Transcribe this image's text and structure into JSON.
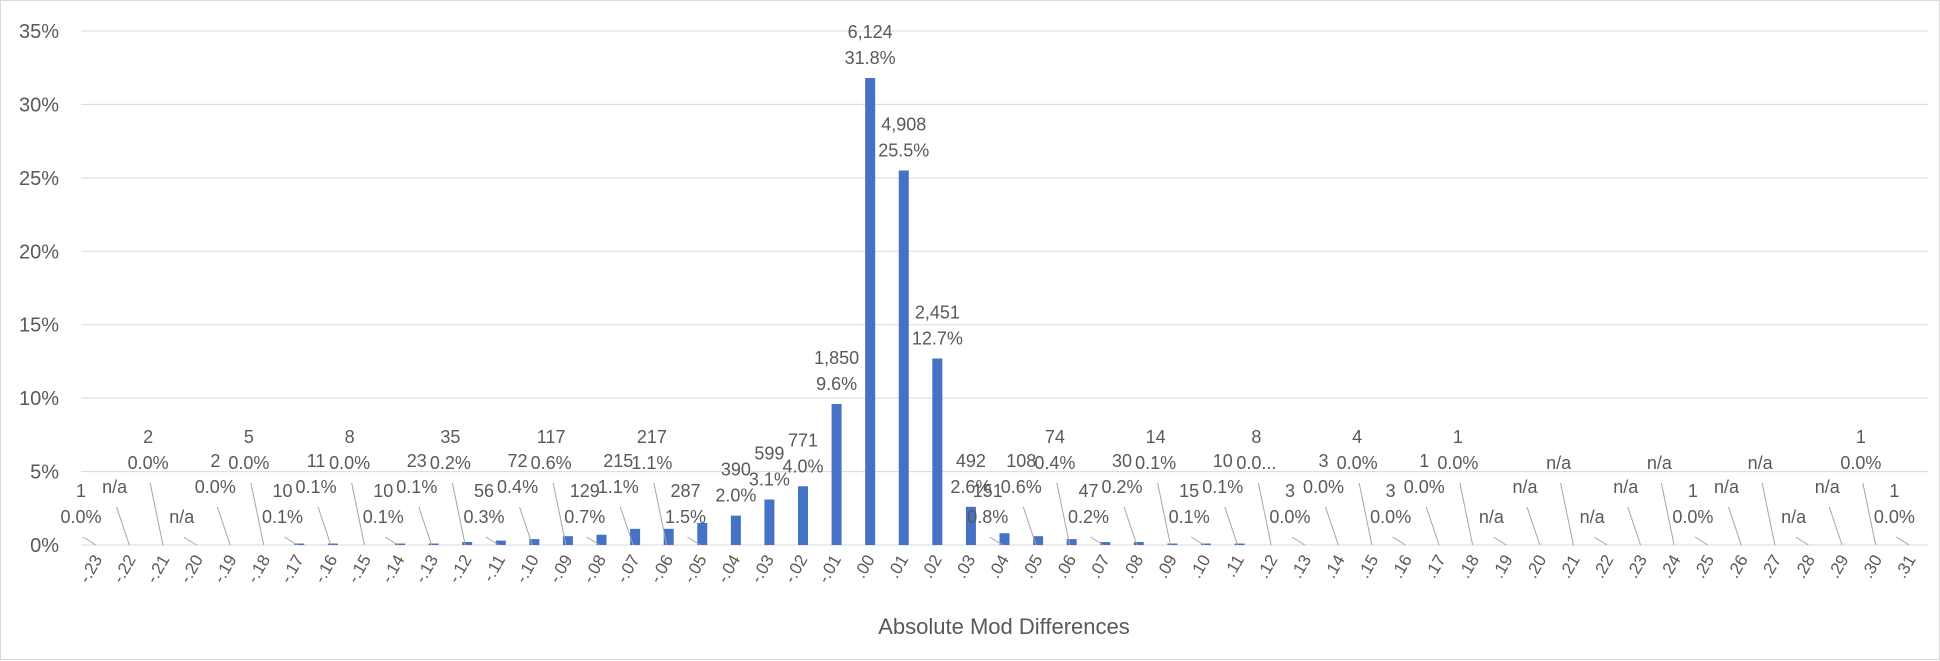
{
  "chart_data": {
    "type": "bar",
    "xlabel": "Absolute Mod Differences",
    "ylabel": "",
    "ylim": [
      0,
      35
    ],
    "y_ticks": [
      0,
      5,
      10,
      15,
      20,
      25,
      30,
      35
    ],
    "y_tick_labels": [
      "0%",
      "5%",
      "10%",
      "15%",
      "20%",
      "25%",
      "30%",
      "35%"
    ],
    "grid": "horizontal",
    "bar_color": "#4472c4",
    "categories": [
      "-.23",
      "-.22",
      "-.21",
      "-.20",
      "-.19",
      "-.18",
      "-.17",
      "-.16",
      "-.15",
      "-.14",
      "-.13",
      "-.12",
      "-.11",
      "-.10",
      "-.09",
      "-.08",
      "-.07",
      "-.06",
      "-.05",
      "-.04",
      "-.03",
      "-.02",
      "-.01",
      ".00",
      ".01",
      ".02",
      ".03",
      ".04",
      ".05",
      ".06",
      ".07",
      ".08",
      ".09",
      ".10",
      ".11",
      ".12",
      ".13",
      ".14",
      ".15",
      ".16",
      ".17",
      ".18",
      ".19",
      ".20",
      ".21",
      ".22",
      ".23",
      ".24",
      ".25",
      ".26",
      ".27",
      ".28",
      ".29",
      ".30",
      ".31"
    ],
    "series": [
      {
        "values": [
          0.0,
          0,
          0.0,
          0,
          0.0,
          0.0,
          0.1,
          0.1,
          0.0,
          0.1,
          0.1,
          0.2,
          0.3,
          0.4,
          0.6,
          0.7,
          1.1,
          1.1,
          1.5,
          2.0,
          3.1,
          4.0,
          9.6,
          31.8,
          25.5,
          12.7,
          2.6,
          0.8,
          0.6,
          0.4,
          0.2,
          0.2,
          0.1,
          0.1,
          0.1,
          0.0,
          0.0,
          0.0,
          0.0,
          0.0,
          0.0,
          0.0,
          0,
          0,
          0,
          0,
          0,
          0.0,
          0,
          0,
          0,
          0.0,
          0.0,
          0,
          0.0
        ]
      }
    ],
    "data_labels": [
      {
        "count": "1",
        "pct": "0.0%"
      },
      {
        "count": "n/a",
        "pct": ""
      },
      {
        "count": "2",
        "pct": "0.0%"
      },
      {
        "count": "n/a",
        "pct": ""
      },
      {
        "count": "2",
        "pct": "0.0%"
      },
      {
        "count": "5",
        "pct": "0.0%"
      },
      {
        "count": "10",
        "pct": "0.1%"
      },
      {
        "count": "11",
        "pct": "0.1%"
      },
      {
        "count": "8",
        "pct": "0.0%"
      },
      {
        "count": "10",
        "pct": "0.1%"
      },
      {
        "count": "23",
        "pct": "0.1%"
      },
      {
        "count": "35",
        "pct": "0.2%"
      },
      {
        "count": "56",
        "pct": "0.3%"
      },
      {
        "count": "72",
        "pct": "0.4%"
      },
      {
        "count": "117",
        "pct": "0.6%"
      },
      {
        "count": "129",
        "pct": "0.7%"
      },
      {
        "count": "215",
        "pct": "1.1%"
      },
      {
        "count": "217",
        "pct": "1.1%"
      },
      {
        "count": "287",
        "pct": "1.5%"
      },
      {
        "count": "390",
        "pct": "2.0%"
      },
      {
        "count": "599",
        "pct": "3.1%"
      },
      {
        "count": "771",
        "pct": "4.0%"
      },
      {
        "count": "1,850",
        "pct": "9.6%"
      },
      {
        "count": "6,124",
        "pct": "31.8%"
      },
      {
        "count": "4,908",
        "pct": "25.5%"
      },
      {
        "count": "2,451",
        "pct": "12.7%"
      },
      {
        "count": "492",
        "pct": "2.6%"
      },
      {
        "count": "151",
        "pct": "0.8%"
      },
      {
        "count": "108",
        "pct": "0.6%"
      },
      {
        "count": "74",
        "pct": "0.4%"
      },
      {
        "count": "47",
        "pct": "0.2%"
      },
      {
        "count": "30",
        "pct": "0.2%"
      },
      {
        "count": "14",
        "pct": "0.1%"
      },
      {
        "count": "15",
        "pct": "0.1%"
      },
      {
        "count": "10",
        "pct": "0.1%"
      },
      {
        "count": "8",
        "pct": "0.0..."
      },
      {
        "count": "3",
        "pct": "0.0%"
      },
      {
        "count": "3",
        "pct": "0.0%"
      },
      {
        "count": "4",
        "pct": "0.0%"
      },
      {
        "count": "3",
        "pct": "0.0%"
      },
      {
        "count": "1",
        "pct": "0.0%"
      },
      {
        "count": "1",
        "pct": "0.0%"
      },
      {
        "count": "n/a",
        "pct": ""
      },
      {
        "count": "n/a",
        "pct": ""
      },
      {
        "count": "n/a",
        "pct": ""
      },
      {
        "count": "n/a",
        "pct": ""
      },
      {
        "count": "n/a",
        "pct": ""
      },
      {
        "count": "n/a",
        "pct": ""
      },
      {
        "count": "1",
        "pct": "0.0%"
      },
      {
        "count": "n/a",
        "pct": ""
      },
      {
        "count": "n/a",
        "pct": ""
      },
      {
        "count": "n/a",
        "pct": ""
      },
      {
        "count": "n/a",
        "pct": ""
      },
      {
        "count": "1",
        "pct": "0.0%"
      },
      {
        "count": "1",
        "pct": "0.0%"
      }
    ]
  }
}
